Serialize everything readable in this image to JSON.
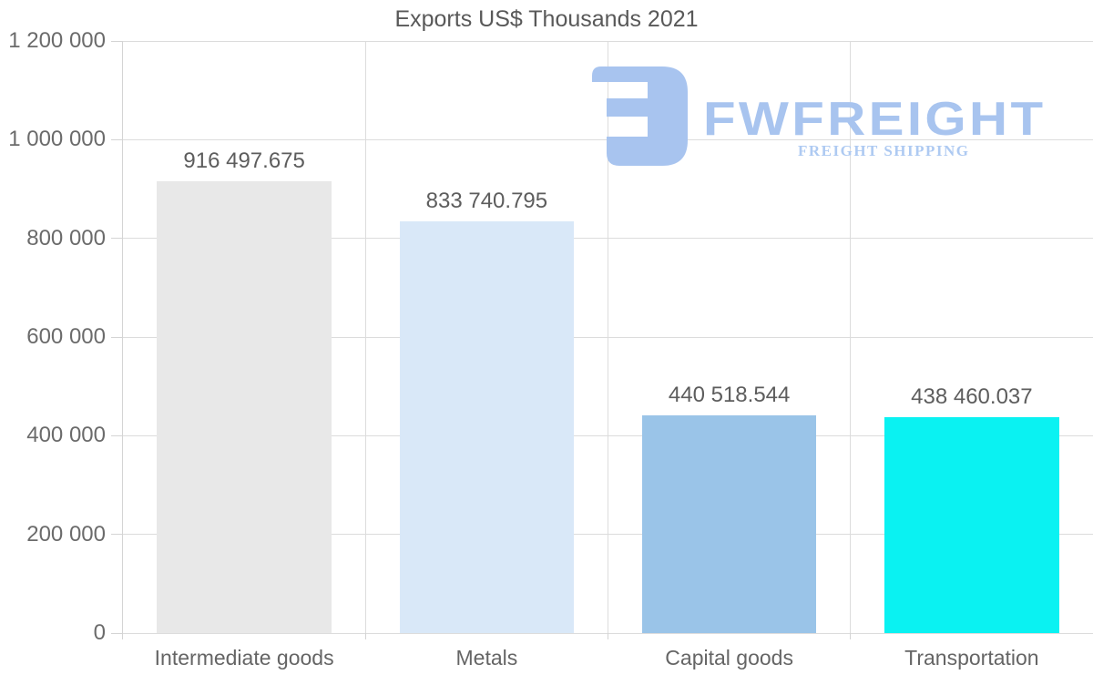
{
  "title": "Exports US$ Thousands 2021",
  "logo": {
    "name": "FWFREIGHT",
    "tagline": "FREIGHT SHIPPING",
    "color": "#a8c4ef"
  },
  "chart_data": {
    "type": "bar",
    "title": "Exports US$ Thousands 2021",
    "xlabel": "",
    "ylabel": "",
    "categories": [
      "Intermediate goods",
      "Metals",
      "Capital goods",
      "Transportation"
    ],
    "values": [
      916497.675,
      833740.795,
      440518.544,
      438460.037
    ],
    "value_labels": [
      "916 497.675",
      "833 740.795",
      "440 518.544",
      "438 460.037"
    ],
    "bar_colors": [
      "#e8e8e8",
      "#d9e8f8",
      "#9ac4e8",
      "#0af2f2"
    ],
    "ylim": [
      0,
      1200000
    ],
    "ytick_step": 200000,
    "ytick_labels": [
      "0",
      "200 000",
      "400 000",
      "600 000",
      "800 000",
      "1 000 000",
      "1 200 000"
    ],
    "grid": true,
    "legend": false
  }
}
